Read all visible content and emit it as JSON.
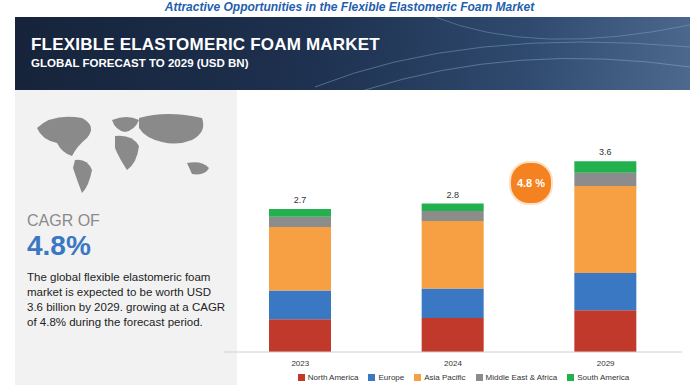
{
  "header": {
    "title": "Attractive Opportunities in the Flexible Elastomeric Foam Market"
  },
  "side_panel": {
    "cagr_label": "CAGR OF",
    "cagr_value": "4.8%",
    "description": "The global flexible elastomeric foam market is expected to be worth USD 3.6 billion by 2029. growing at a CAGR of 4.8% during the forecast period."
  },
  "chart_data": {
    "type": "bar",
    "title": "FLEXIBLE ELASTOMERIC FOAM MARKET",
    "subtitle": "GLOBAL FORECAST TO 2029 (USD BN)",
    "stacked": true,
    "categories": [
      "2023",
      "2024",
      "2029"
    ],
    "series": [
      {
        "name": "North America",
        "color": "#c0392b",
        "values": [
          0.62,
          0.64,
          0.79
        ]
      },
      {
        "name": "Europe",
        "color": "#3a78c3",
        "values": [
          0.54,
          0.56,
          0.7
        ]
      },
      {
        "name": "Asia Pacific",
        "color": "#f7a043",
        "values": [
          1.2,
          1.27,
          1.64
        ]
      },
      {
        "name": "Middle East & Africa",
        "color": "#8c8c8c",
        "values": [
          0.19,
          0.19,
          0.25
        ]
      },
      {
        "name": "South America",
        "color": "#22b14c",
        "values": [
          0.15,
          0.14,
          0.22
        ]
      }
    ],
    "totals": [
      2.7,
      2.8,
      3.6
    ],
    "ylim": [
      0,
      4
    ],
    "tick_labels": "x",
    "legend": "bottom",
    "annotations": [
      "4.8 %"
    ]
  }
}
